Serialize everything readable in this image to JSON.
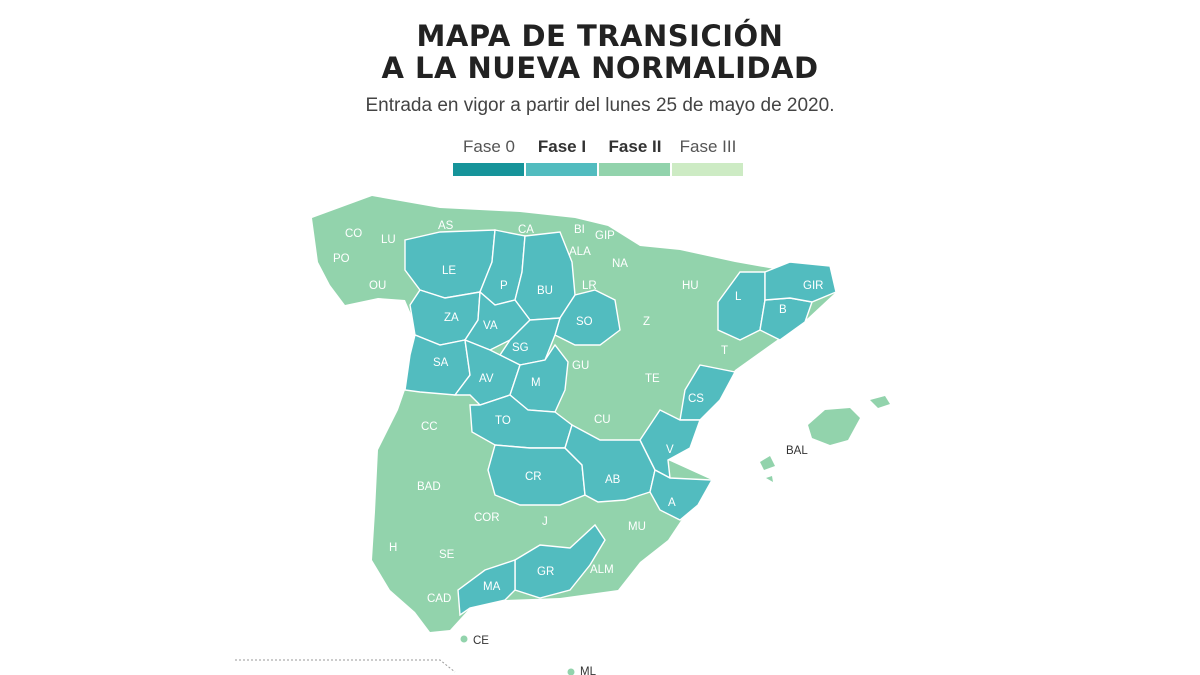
{
  "title": {
    "line1": "MAPA DE TRANSICIÓN",
    "line2": "A LA NUEVA NORMALIDAD"
  },
  "subtitle": "Entrada en vigor a partir del lunes 25 de mayo de 2020.",
  "legend": [
    {
      "label": "Fase 0",
      "color": "#16949a",
      "bold": false
    },
    {
      "label": "Fase I",
      "color": "#52bcbf",
      "bold": true
    },
    {
      "label": "Fase II",
      "color": "#92d3ac",
      "bold": true
    },
    {
      "label": "Fase III",
      "color": "#cdebc4",
      "bold": false
    }
  ],
  "regions": [
    {
      "code": "CO",
      "phase": "Fase II"
    },
    {
      "code": "LU",
      "phase": "Fase II"
    },
    {
      "code": "PO",
      "phase": "Fase II"
    },
    {
      "code": "OU",
      "phase": "Fase II"
    },
    {
      "code": "AS",
      "phase": "Fase II"
    },
    {
      "code": "CA",
      "phase": "Fase II"
    },
    {
      "code": "BI",
      "phase": "Fase II"
    },
    {
      "code": "GIP",
      "phase": "Fase II"
    },
    {
      "code": "ALA",
      "phase": "Fase II"
    },
    {
      "code": "NA",
      "phase": "Fase II"
    },
    {
      "code": "LR",
      "phase": "Fase II"
    },
    {
      "code": "LE",
      "phase": "Fase I"
    },
    {
      "code": "P",
      "phase": "Fase I"
    },
    {
      "code": "BU",
      "phase": "Fase I"
    },
    {
      "code": "HU",
      "phase": "Fase II"
    },
    {
      "code": "L",
      "phase": "Fase I"
    },
    {
      "code": "GIR",
      "phase": "Fase I"
    },
    {
      "code": "B",
      "phase": "Fase I"
    },
    {
      "code": "ZA",
      "phase": "Fase I"
    },
    {
      "code": "VA",
      "phase": "Fase I"
    },
    {
      "code": "SO",
      "phase": "Fase I"
    },
    {
      "code": "Z",
      "phase": "Fase II"
    },
    {
      "code": "T",
      "phase": "Fase II"
    },
    {
      "code": "SA",
      "phase": "Fase I"
    },
    {
      "code": "SG",
      "phase": "Fase I"
    },
    {
      "code": "AV",
      "phase": "Fase I"
    },
    {
      "code": "M",
      "phase": "Fase I"
    },
    {
      "code": "GU",
      "phase": "Fase II"
    },
    {
      "code": "TE",
      "phase": "Fase II"
    },
    {
      "code": "CS",
      "phase": "Fase I"
    },
    {
      "code": "CC",
      "phase": "Fase II"
    },
    {
      "code": "TO",
      "phase": "Fase I"
    },
    {
      "code": "CU",
      "phase": "Fase II"
    },
    {
      "code": "V",
      "phase": "Fase I"
    },
    {
      "code": "BAL",
      "phase": "Fase II"
    },
    {
      "code": "BAD",
      "phase": "Fase II"
    },
    {
      "code": "CR",
      "phase": "Fase I"
    },
    {
      "code": "AB",
      "phase": "Fase I"
    },
    {
      "code": "A",
      "phase": "Fase I"
    },
    {
      "code": "COR",
      "phase": "Fase II"
    },
    {
      "code": "J",
      "phase": "Fase II"
    },
    {
      "code": "MU",
      "phase": "Fase II"
    },
    {
      "code": "H",
      "phase": "Fase II"
    },
    {
      "code": "SE",
      "phase": "Fase II"
    },
    {
      "code": "GR",
      "phase": "Fase I"
    },
    {
      "code": "ALM",
      "phase": "Fase II"
    },
    {
      "code": "MA",
      "phase": "Fase I"
    },
    {
      "code": "CAD",
      "phase": "Fase II"
    },
    {
      "code": "CE",
      "phase": "Fase II"
    },
    {
      "code": "ML",
      "phase": "Fase II"
    }
  ]
}
